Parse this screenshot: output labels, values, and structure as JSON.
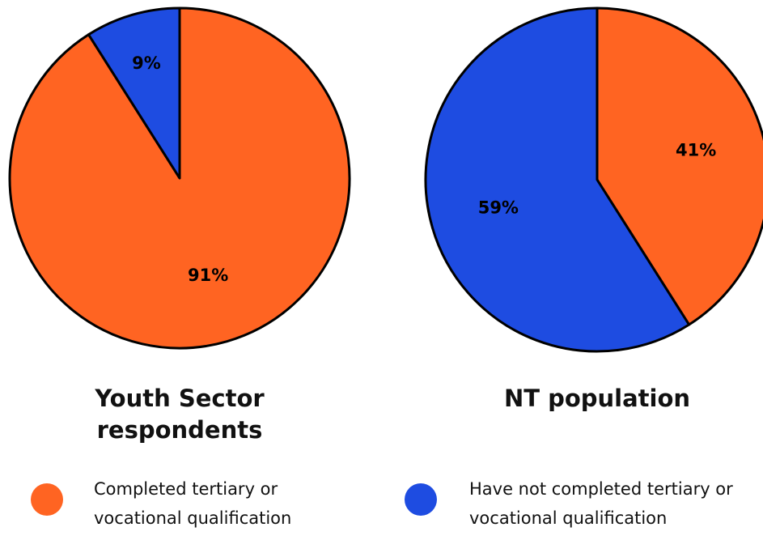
{
  "chart_data": [
    {
      "type": "pie",
      "title": "Youth Sector respondents",
      "values": [
        91,
        9
      ],
      "value_labels": [
        "91%",
        "9%"
      ]
    },
    {
      "type": "pie",
      "title": "NT population",
      "values": [
        41,
        59
      ],
      "value_labels": [
        "41%",
        "59%"
      ]
    }
  ],
  "legend": {
    "categories": [
      "Completed tertiary or vocational qualification",
      "Have not completed tertiary or vocational qualification"
    ],
    "colors": [
      "#ff6422",
      "#1e4ce1"
    ]
  }
}
